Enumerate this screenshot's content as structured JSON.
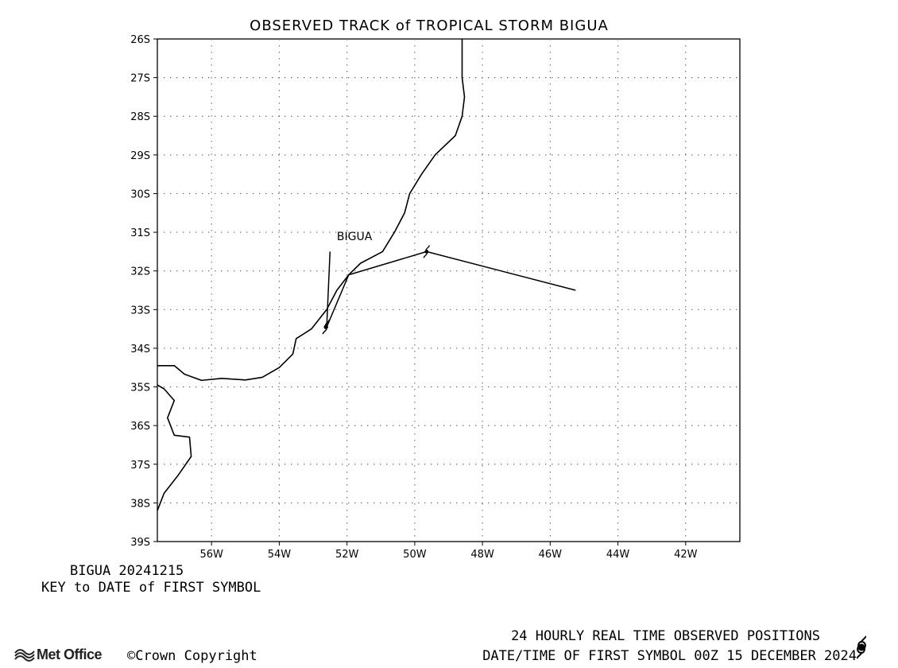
{
  "title": "OBSERVED TRACK of TROPICAL STORM BIGUA",
  "map": {
    "lon_range": [
      -57.6,
      -40.4
    ],
    "lat_range": [
      -39,
      -26
    ],
    "lat_ticks": [
      -26,
      -27,
      -28,
      -29,
      -30,
      -31,
      -32,
      -33,
      -34,
      -35,
      -36,
      -37,
      -38,
      -39
    ],
    "lat_tick_labels": [
      "26S",
      "27S",
      "28S",
      "29S",
      "30S",
      "31S",
      "32S",
      "33S",
      "34S",
      "35S",
      "36S",
      "37S",
      "38S",
      "39S"
    ],
    "lon_ticks": [
      -56,
      -54,
      -52,
      -50,
      -48,
      -46,
      -44,
      -42
    ],
    "lon_tick_labels": [
      "56W",
      "54W",
      "52W",
      "50W",
      "48W",
      "46W",
      "44W",
      "42W"
    ],
    "grid": "dotted"
  },
  "coastlines": [
    [
      [
        -48.6,
        -26
      ],
      [
        -48.6,
        -27
      ],
      [
        -48.53,
        -27.5
      ],
      [
        -48.6,
        -28
      ],
      [
        -48.8,
        -28.5
      ],
      [
        -49.4,
        -29
      ],
      [
        -49.8,
        -29.5
      ],
      [
        -50.15,
        -30
      ],
      [
        -50.3,
        -30.5
      ],
      [
        -50.6,
        -31
      ],
      [
        -50.95,
        -31.5
      ],
      [
        -51.6,
        -31.8
      ],
      [
        -51.95,
        -32.1
      ],
      [
        -52.3,
        -32.5
      ],
      [
        -52.6,
        -33
      ],
      [
        -53.05,
        -33.5
      ],
      [
        -53.5,
        -33.75
      ],
      [
        -53.6,
        -34.15
      ],
      [
        -54.0,
        -34.5
      ],
      [
        -54.5,
        -34.75
      ],
      [
        -55.0,
        -34.82
      ],
      [
        -55.7,
        -34.78
      ],
      [
        -56.3,
        -34.83
      ],
      [
        -56.8,
        -34.67
      ],
      [
        -57.1,
        -34.45
      ],
      [
        -57.6,
        -34.45
      ]
    ],
    [
      [
        -57.6,
        -34.95
      ],
      [
        -57.4,
        -35.05
      ],
      [
        -57.1,
        -35.35
      ],
      [
        -57.3,
        -35.8
      ],
      [
        -57.1,
        -36.25
      ],
      [
        -56.65,
        -36.3
      ],
      [
        -56.6,
        -36.8
      ],
      [
        -57.0,
        -37.3
      ],
      [
        -57.4,
        -37.75
      ],
      [
        -57.6,
        -38.2
      ]
    ]
  ],
  "storm": {
    "name": "BIGUA",
    "label": "BIGUA",
    "label_position": [
      -52.3,
      -31.2
    ],
    "track": [
      [
        -45.25,
        -32.5
      ],
      [
        -49.65,
        -31.5
      ],
      [
        -51.95,
        -32.1
      ],
      [
        -52.6,
        -33.45
      ],
      [
        -52.5,
        -31.5
      ]
    ],
    "first_symbol_position": [
      -52.62,
      -33.45
    ],
    "second_symbol_position": [
      -49.65,
      -31.5
    ]
  },
  "key_block": {
    "line1": "BIGUA 20241215",
    "line2": "KEY to DATE of FIRST SYMBOL"
  },
  "legend": {
    "line1": "24 HOURLY REAL TIME OBSERVED POSITIONS",
    "line2": "DATE/TIME OF FIRST SYMBOL 00Z 15 DECEMBER 2024",
    "symbol": "tropical-storm-icon"
  },
  "branding": {
    "logo": "Met Office",
    "copyright": "©Crown Copyright"
  }
}
